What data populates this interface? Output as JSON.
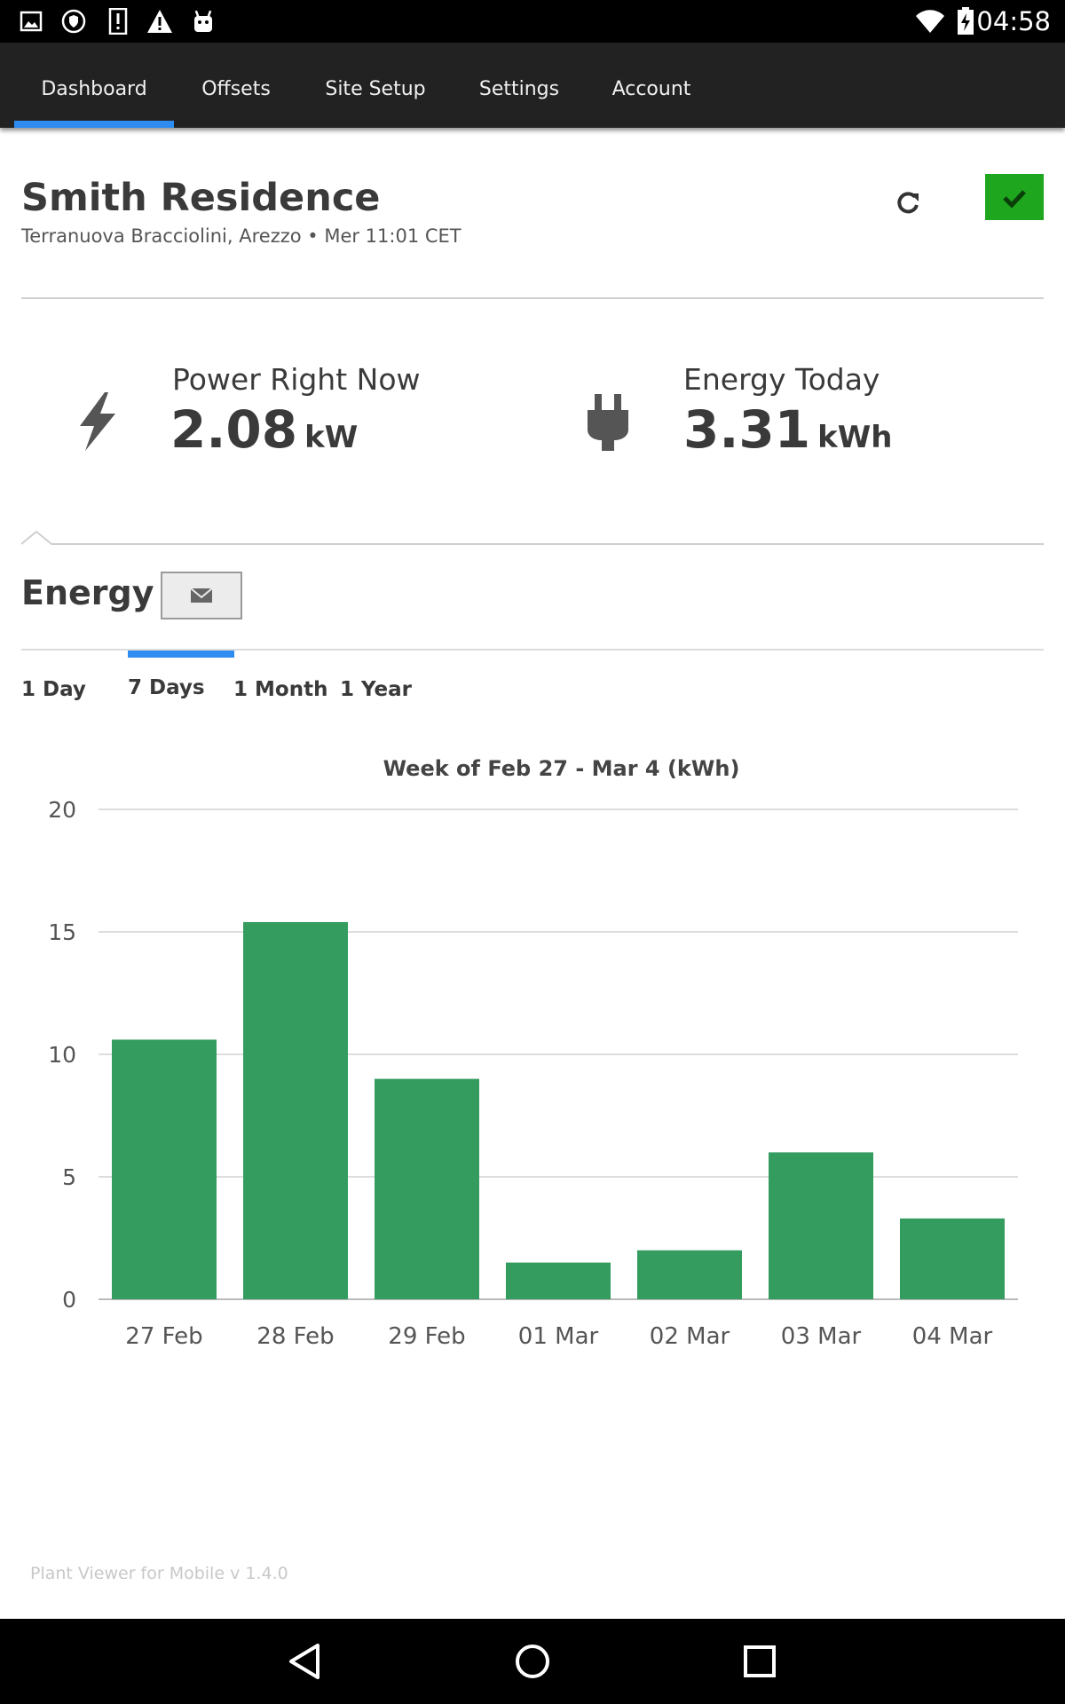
{
  "status_bar": {
    "time": "04:58",
    "left_icons": [
      "gallery-icon",
      "shield-icon",
      "alert-box-icon",
      "warning-icon",
      "android-icon"
    ],
    "right_icons": [
      "wifi-icon",
      "battery-charging-icon"
    ]
  },
  "nav": {
    "tabs": [
      {
        "label": "Dashboard",
        "active": true
      },
      {
        "label": "Offsets",
        "active": false
      },
      {
        "label": "Site Setup",
        "active": false
      },
      {
        "label": "Settings",
        "active": false
      },
      {
        "label": "Account",
        "active": false
      }
    ]
  },
  "site": {
    "title": "Smith Residence",
    "subtitle": "Terranuova Bracciolini, Arezzo • Mer 11:01 CET"
  },
  "metrics": {
    "power": {
      "label": "Power Right Now",
      "value": "2.08",
      "unit": "kW",
      "icon": "lightning-icon"
    },
    "energy": {
      "label": "Energy Today",
      "value": "3.31",
      "unit": "kWh",
      "icon": "plug-icon"
    }
  },
  "energy_section": {
    "title": "Energy",
    "email_icon": "envelope-icon",
    "ranges": [
      "1 Day",
      "7 Days",
      "1 Month",
      "1 Year"
    ],
    "selected_range": "7 Days"
  },
  "chart_data": {
    "type": "bar",
    "title": "Week of Feb 27 - Mar 4 (kWh)",
    "categories": [
      "27 Feb",
      "28 Feb",
      "29 Feb",
      "01 Mar",
      "02 Mar",
      "03 Mar",
      "04 Mar"
    ],
    "values": [
      10.6,
      15.4,
      9.0,
      1.5,
      2.0,
      6.0,
      3.3
    ],
    "ylim": [
      0,
      20
    ],
    "yticks": [
      0,
      5,
      10,
      15,
      20
    ],
    "grid": true,
    "bar_color": "#349c5f"
  },
  "footer": {
    "version": "Plant Viewer for Mobile v 1.4.0"
  },
  "colors": {
    "accent": "#2f8cf0",
    "ok_green": "#1fa61f",
    "navbar": "#222222",
    "bar": "#349c5f"
  }
}
